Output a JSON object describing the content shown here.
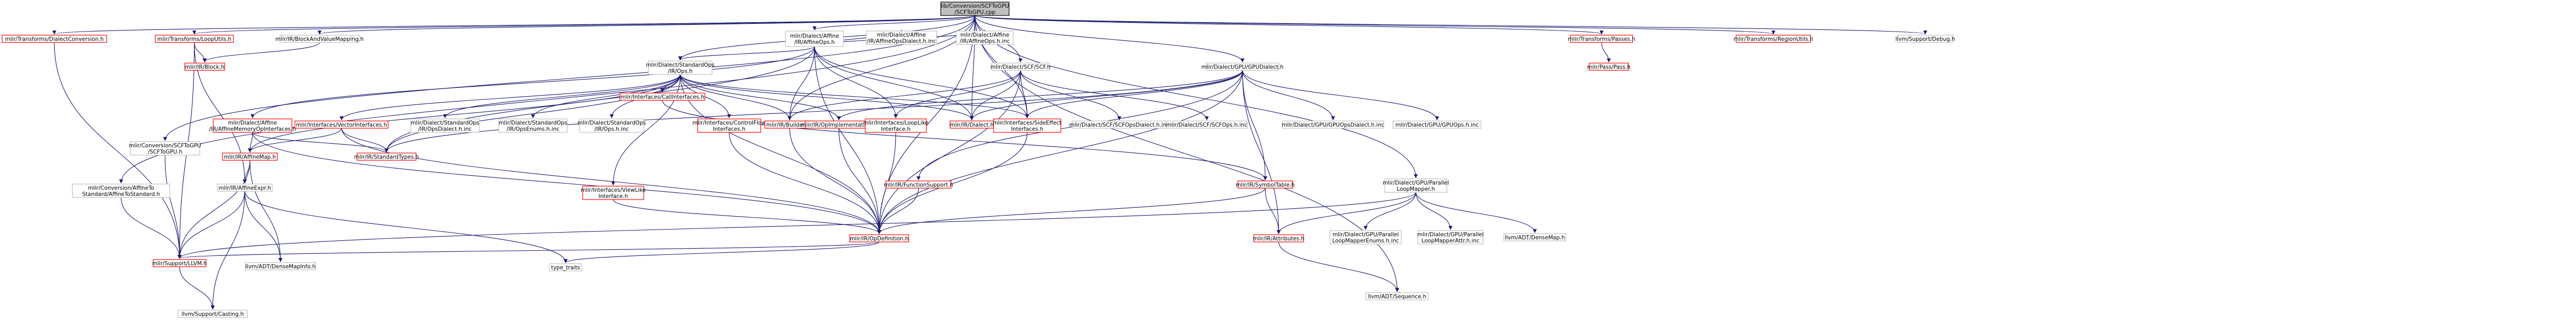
{
  "graph": {
    "root": "lib/Conversion/SCFToGPU/SCFToGPU.cpp",
    "colors": {
      "edge": "#191970",
      "root_fill": "#bfbfbf",
      "linked_border": "#ff0000",
      "plain_border": "#bfbfbf",
      "root_border": "#000000"
    },
    "nodes": [
      {
        "id": "root",
        "lines": [
          "lib/Conversion/SCFToGPU",
          "/SCFToGPU.cpp"
        ],
        "kind": "root"
      },
      {
        "id": "tdc",
        "lines": [
          "mlir/Transforms/DialectConversion.h"
        ],
        "kind": "linked"
      },
      {
        "id": "lu",
        "lines": [
          "mlir/Transforms/LoopUtils.h"
        ],
        "kind": "linked"
      },
      {
        "id": "bavm",
        "lines": [
          "mlir/IR/BlockAndValueMapping.h"
        ],
        "kind": "plain"
      },
      {
        "id": "affops",
        "lines": [
          "mlir/Dialect/Affine",
          "/IR/AffineOps.h"
        ],
        "kind": "plain"
      },
      {
        "id": "scf",
        "lines": [
          "mlir/Dialect/SCF/SCF.h"
        ],
        "kind": "plain"
      },
      {
        "id": "gpudia",
        "lines": [
          "mlir/Dialect/GPU/GPUDialect.h"
        ],
        "kind": "plain"
      },
      {
        "id": "passes",
        "lines": [
          "mlir/Transforms/Passes.h"
        ],
        "kind": "linked"
      },
      {
        "id": "region",
        "lines": [
          "mlir/Transforms/RegionUtils.h"
        ],
        "kind": "linked"
      },
      {
        "id": "debug",
        "lines": [
          "llvm/Support/Debug.h"
        ],
        "kind": "plain"
      },
      {
        "id": "block",
        "lines": [
          "mlir/IR/Block.h"
        ],
        "kind": "linked"
      },
      {
        "id": "stdops",
        "lines": [
          "mlir/Dialect/StandardOps",
          "/IR/Ops.h"
        ],
        "kind": "plain"
      },
      {
        "id": "affdia",
        "lines": [
          "mlir/Dialect/Affine",
          "/IR/AffineOpsDialect.h.inc"
        ],
        "kind": "plain"
      },
      {
        "id": "affinc",
        "lines": [
          "mlir/Dialect/Affine",
          "/IR/AffineOps.h.inc"
        ],
        "kind": "plain"
      },
      {
        "id": "pass",
        "lines": [
          "mlir/Pass/Pass.h"
        ],
        "kind": "linked"
      },
      {
        "id": "conv",
        "lines": [
          "mlir/Conversion/SCFToGPU",
          "/SCFToGPU.h"
        ],
        "kind": "plain"
      },
      {
        "id": "amoi",
        "lines": [
          "mlir/Dialect/Affine",
          "/IR/AffineMemoryOpInterfaces.h"
        ],
        "kind": "linked"
      },
      {
        "id": "vi",
        "lines": [
          "mlir/Interfaces/VectorInterfaces.h"
        ],
        "kind": "linked"
      },
      {
        "id": "stddia",
        "lines": [
          "mlir/Dialect/StandardOps",
          "/IR/OpsDialect.h.inc"
        ],
        "kind": "plain"
      },
      {
        "id": "stdenum",
        "lines": [
          "mlir/Dialect/StandardOps",
          "/IR/OpsEnums.h.inc"
        ],
        "kind": "plain"
      },
      {
        "id": "stdinc",
        "lines": [
          "mlir/Dialect/StandardOps",
          "/IR/Ops.h.inc"
        ],
        "kind": "plain"
      },
      {
        "id": "calli",
        "lines": [
          "mlir/Interfaces/CallInterfaces.h"
        ],
        "kind": "linked"
      },
      {
        "id": "cfi",
        "lines": [
          "mlir/Interfaces/ControlFlow",
          "Interfaces.h"
        ],
        "kind": "linked"
      },
      {
        "id": "builders",
        "lines": [
          "mlir/IR/Builders.h"
        ],
        "kind": "linked"
      },
      {
        "id": "opimpl",
        "lines": [
          "mlir/IR/OpImplementation.h"
        ],
        "kind": "linked"
      },
      {
        "id": "loopli",
        "lines": [
          "mlir/Interfaces/LoopLike",
          "Interface.h"
        ],
        "kind": "linked"
      },
      {
        "id": "dialect",
        "lines": [
          "mlir/IR/Dialect.h"
        ],
        "kind": "linked"
      },
      {
        "id": "sei",
        "lines": [
          "mlir/Interfaces/SideEffect",
          "Interfaces.h"
        ],
        "kind": "linked"
      },
      {
        "id": "scfdia",
        "lines": [
          "mlir/Dialect/SCF/SCFOpsDialect.h.inc"
        ],
        "kind": "plain"
      },
      {
        "id": "scfinc",
        "lines": [
          "mlir/Dialect/SCF/SCFOps.h.inc"
        ],
        "kind": "plain"
      },
      {
        "id": "gpuopsdia",
        "lines": [
          "mlir/Dialect/GPU/GPUOpsDialect.h.inc"
        ],
        "kind": "plain"
      },
      {
        "id": "gpuopsinc",
        "lines": [
          "mlir/Dialect/GPU/GPUOps.h.inc"
        ],
        "kind": "plain"
      },
      {
        "id": "affmap",
        "lines": [
          "mlir/IR/AffineMap.h"
        ],
        "kind": "linked"
      },
      {
        "id": "affexpr",
        "lines": [
          "mlir/IR/AffineExpr.h"
        ],
        "kind": "plain"
      },
      {
        "id": "stypes",
        "lines": [
          "mlir/IR/StandardTypes.h"
        ],
        "kind": "linked"
      },
      {
        "id": "affstd",
        "lines": [
          "mlir/Conversion/AffineTo",
          "Standard/AffineToStandard.h"
        ],
        "kind": "plain"
      },
      {
        "id": "vli",
        "lines": [
          "mlir/Interfaces/ViewLike",
          "Interface.h"
        ],
        "kind": "linked"
      },
      {
        "id": "funcsup",
        "lines": [
          "mlir/IR/FunctionSupport.h"
        ],
        "kind": "linked"
      },
      {
        "id": "symtab",
        "lines": [
          "mlir/IR/SymbolTable.h"
        ],
        "kind": "linked"
      },
      {
        "id": "plm",
        "lines": [
          "mlir/Dialect/GPU/Parallel",
          "LoopMapper.h"
        ],
        "kind": "plain"
      },
      {
        "id": "opdef",
        "lines": [
          "mlir/IR/OpDefinition.h"
        ],
        "kind": "linked"
      },
      {
        "id": "attrs",
        "lines": [
          "mlir/IR/Attributes.h"
        ],
        "kind": "linked"
      },
      {
        "id": "plmenum",
        "lines": [
          "mlir/Dialect/GPU/Parallel",
          "LoopMapperEnums.h.inc"
        ],
        "kind": "plain"
      },
      {
        "id": "plmattr",
        "lines": [
          "mlir/Dialect/GPU/Parallel",
          "LoopMapperAttr.h.inc"
        ],
        "kind": "plain"
      },
      {
        "id": "densemap",
        "lines": [
          "llvm/ADT/DenseMap.h"
        ],
        "kind": "plain"
      },
      {
        "id": "dmi",
        "lines": [
          "llvm/ADT/DenseMapInfo.h"
        ],
        "kind": "plain"
      },
      {
        "id": "llvm",
        "lines": [
          "mlir/Support/LLVM.h"
        ],
        "kind": "linked"
      },
      {
        "id": "traits",
        "lines": [
          "type_traits"
        ],
        "kind": "plain"
      },
      {
        "id": "seq",
        "lines": [
          "llvm/ADT/Sequence.h"
        ],
        "kind": "plain"
      },
      {
        "id": "casting",
        "lines": [
          "llvm/Support/Casting.h"
        ],
        "kind": "plain"
      }
    ],
    "edges": [
      [
        "root",
        "tdc"
      ],
      [
        "root",
        "lu"
      ],
      [
        "root",
        "bavm"
      ],
      [
        "root",
        "affops"
      ],
      [
        "root",
        "scf"
      ],
      [
        "root",
        "gpudia"
      ],
      [
        "root",
        "passes"
      ],
      [
        "root",
        "region"
      ],
      [
        "root",
        "debug"
      ],
      [
        "root",
        "conv"
      ],
      [
        "root",
        "affstd"
      ],
      [
        "root",
        "plm"
      ],
      [
        "root",
        "builders"
      ],
      [
        "root",
        "dialect"
      ],
      [
        "root",
        "opdef"
      ],
      [
        "root",
        "sei"
      ],
      [
        "root",
        "seq"
      ],
      [
        "root",
        "stdops"
      ],
      [
        "tdc",
        "llvm"
      ],
      [
        "lu",
        "block"
      ],
      [
        "lu",
        "llvm"
      ],
      [
        "lu",
        "affexpr"
      ],
      [
        "bavm",
        "block"
      ],
      [
        "affops",
        "stdops"
      ],
      [
        "affops",
        "affdia"
      ],
      [
        "affops",
        "affinc"
      ],
      [
        "affops",
        "amoi"
      ],
      [
        "affops",
        "builders"
      ],
      [
        "affops",
        "dialect"
      ],
      [
        "affops",
        "opdef"
      ],
      [
        "affops",
        "sei"
      ],
      [
        "affops",
        "stypes"
      ],
      [
        "affops",
        "loopli"
      ],
      [
        "scf",
        "builders"
      ],
      [
        "scf",
        "dialect"
      ],
      [
        "scf",
        "opdef"
      ],
      [
        "scf",
        "loopli"
      ],
      [
        "scf",
        "sei"
      ],
      [
        "scf",
        "scfdia"
      ],
      [
        "scf",
        "scfinc"
      ],
      [
        "gpudia",
        "dialect"
      ],
      [
        "gpudia",
        "funcsup"
      ],
      [
        "gpudia",
        "opdef"
      ],
      [
        "gpudia",
        "opimpl"
      ],
      [
        "gpudia",
        "symtab"
      ],
      [
        "gpudia",
        "gpuopsdia"
      ],
      [
        "gpudia",
        "gpuopsinc"
      ],
      [
        "gpudia",
        "sei"
      ],
      [
        "gpudia",
        "stypes"
      ],
      [
        "gpudia",
        "attrs"
      ],
      [
        "passes",
        "pass"
      ],
      [
        "stdops",
        "vi"
      ],
      [
        "stdops",
        "stddia"
      ],
      [
        "stdops",
        "stdenum"
      ],
      [
        "stdops",
        "stdinc"
      ],
      [
        "stdops",
        "calli"
      ],
      [
        "stdops",
        "cfi"
      ],
      [
        "stdops",
        "builders"
      ],
      [
        "stdops",
        "opimpl"
      ],
      [
        "stdops",
        "dialect"
      ],
      [
        "stdops",
        "sei"
      ],
      [
        "stdops",
        "stypes"
      ],
      [
        "stdops",
        "vli"
      ],
      [
        "stdops",
        "affmap"
      ],
      [
        "stdops",
        "opdef"
      ],
      [
        "conv",
        "llvm"
      ],
      [
        "amoi",
        "affmap"
      ],
      [
        "amoi",
        "stypes"
      ],
      [
        "amoi",
        "opdef"
      ],
      [
        "vi",
        "affmap"
      ],
      [
        "vi",
        "stypes"
      ],
      [
        "vi",
        "opdef"
      ],
      [
        "calli",
        "symtab"
      ],
      [
        "cfi",
        "opdef"
      ],
      [
        "builders",
        "opdef"
      ],
      [
        "opimpl",
        "opdef"
      ],
      [
        "loopli",
        "opdef"
      ],
      [
        "sei",
        "opdef"
      ],
      [
        "vli",
        "opdef"
      ],
      [
        "funcsup",
        "opdef"
      ],
      [
        "symtab",
        "opdef"
      ],
      [
        "symtab",
        "attrs"
      ],
      [
        "affmap",
        "affexpr"
      ],
      [
        "affmap",
        "llvm"
      ],
      [
        "affmap",
        "dmi"
      ],
      [
        "affexpr",
        "llvm"
      ],
      [
        "affexpr",
        "casting"
      ],
      [
        "affexpr",
        "traits"
      ],
      [
        "affexpr",
        "dmi"
      ],
      [
        "affstd",
        "llvm"
      ],
      [
        "plm",
        "attrs"
      ],
      [
        "plm",
        "plmenum"
      ],
      [
        "plm",
        "plmattr"
      ],
      [
        "plm",
        "densemap"
      ],
      [
        "plm",
        "llvm"
      ],
      [
        "opdef",
        "llvm"
      ],
      [
        "opdef",
        "traits"
      ],
      [
        "attrs",
        "seq"
      ],
      [
        "llvm",
        "casting"
      ]
    ]
  }
}
